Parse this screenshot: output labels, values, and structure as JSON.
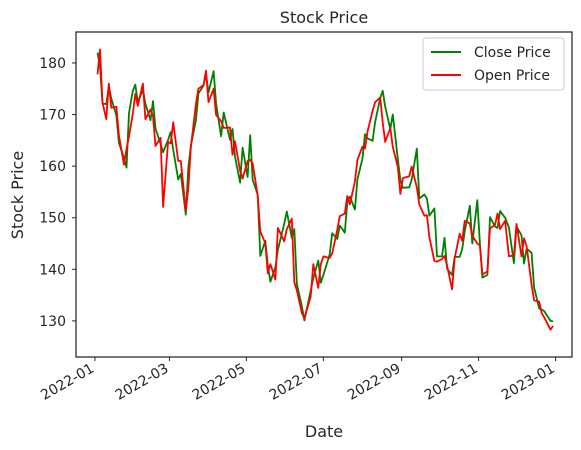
{
  "chart_data": {
    "type": "line",
    "title": "Stock Price",
    "xlabel": "Date",
    "ylabel": "Stock Price",
    "xlim": [
      "2021-12-17",
      "2023-01-14"
    ],
    "ylim": [
      123,
      186
    ],
    "x_ticks": [
      "2022-01",
      "2022-03",
      "2022-05",
      "2022-07",
      "2022-09",
      "2022-11",
      "2023-01"
    ],
    "y_ticks": [
      130,
      140,
      150,
      160,
      170,
      180
    ],
    "grid": false,
    "legend_position": "upper right",
    "x": [
      "2022-01-03",
      "2022-01-05",
      "2022-01-07",
      "2022-01-10",
      "2022-01-12",
      "2022-01-14",
      "2022-01-18",
      "2022-01-20",
      "2022-01-24",
      "2022-01-26",
      "2022-01-28",
      "2022-01-31",
      "2022-02-02",
      "2022-02-04",
      "2022-02-08",
      "2022-02-10",
      "2022-02-14",
      "2022-02-16",
      "2022-02-18",
      "2022-02-22",
      "2022-02-24",
      "2022-02-28",
      "2022-03-02",
      "2022-03-04",
      "2022-03-08",
      "2022-03-10",
      "2022-03-14",
      "2022-03-16",
      "2022-03-18",
      "2022-03-22",
      "2022-03-24",
      "2022-03-28",
      "2022-03-30",
      "2022-04-01",
      "2022-04-05",
      "2022-04-07",
      "2022-04-11",
      "2022-04-13",
      "2022-04-18",
      "2022-04-20",
      "2022-04-22",
      "2022-04-26",
      "2022-04-28",
      "2022-05-02",
      "2022-05-04",
      "2022-05-06",
      "2022-05-10",
      "2022-05-12",
      "2022-05-16",
      "2022-05-18",
      "2022-05-20",
      "2022-05-24",
      "2022-05-26",
      "2022-05-31",
      "2022-06-02",
      "2022-06-06",
      "2022-06-08",
      "2022-06-10",
      "2022-06-14",
      "2022-06-16",
      "2022-06-21",
      "2022-06-23",
      "2022-06-27",
      "2022-06-29",
      "2022-07-01",
      "2022-07-06",
      "2022-07-08",
      "2022-07-12",
      "2022-07-14",
      "2022-07-18",
      "2022-07-20",
      "2022-07-22",
      "2022-07-26",
      "2022-07-28",
      "2022-08-01",
      "2022-08-03",
      "2022-08-05",
      "2022-08-09",
      "2022-08-11",
      "2022-08-15",
      "2022-08-17",
      "2022-08-19",
      "2022-08-23",
      "2022-08-25",
      "2022-08-29",
      "2022-08-31",
      "2022-09-02",
      "2022-09-07",
      "2022-09-09",
      "2022-09-13",
      "2022-09-15",
      "2022-09-19",
      "2022-09-21",
      "2022-09-23",
      "2022-09-27",
      "2022-09-29",
      "2022-10-03",
      "2022-10-05",
      "2022-10-07",
      "2022-10-11",
      "2022-10-13",
      "2022-10-17",
      "2022-10-19",
      "2022-10-21",
      "2022-10-25",
      "2022-10-27",
      "2022-10-31",
      "2022-11-02",
      "2022-11-04",
      "2022-11-08",
      "2022-11-10",
      "2022-11-14",
      "2022-11-16",
      "2022-11-18",
      "2022-11-22",
      "2022-11-25",
      "2022-11-29",
      "2022-12-01",
      "2022-12-05",
      "2022-12-07",
      "2022-12-09",
      "2022-12-13",
      "2022-12-15",
      "2022-12-19",
      "2022-12-21",
      "2022-12-23",
      "2022-12-28",
      "2022-12-30"
    ],
    "series": [
      {
        "name": "Close Price",
        "color": "#008000",
        "values": [
          182.0,
          179.3,
          172.2,
          172.0,
          175.5,
          173.1,
          169.8,
          164.5,
          161.6,
          159.7,
          170.3,
          174.6,
          175.8,
          172.4,
          174.8,
          172.1,
          168.9,
          172.6,
          167.3,
          164.3,
          162.7,
          165.1,
          166.6,
          163.2,
          157.4,
          158.5,
          150.6,
          159.6,
          163.9,
          168.8,
          174.1,
          175.6,
          177.8,
          174.3,
          178.4,
          172.1,
          165.8,
          170.4,
          165.1,
          167.2,
          161.8,
          156.8,
          163.6,
          157.9,
          166.0,
          157.3,
          154.5,
          142.6,
          145.5,
          140.8,
          137.6,
          140.4,
          143.8,
          148.8,
          151.2,
          146.1,
          147.8,
          137.1,
          132.8,
          130.1,
          135.9,
          138.3,
          141.7,
          137.4,
          138.9,
          142.9,
          147.0,
          145.9,
          148.5,
          147.1,
          153.0,
          154.1,
          151.6,
          157.4,
          161.5,
          166.2,
          165.4,
          164.9,
          168.5,
          173.2,
          174.6,
          171.5,
          167.2,
          170.0,
          161.4,
          157.2,
          155.8,
          155.9,
          157.4,
          163.4,
          153.7,
          154.5,
          153.7,
          150.4,
          151.8,
          142.5,
          142.5,
          146.1,
          140.1,
          138.9,
          142.4,
          142.4,
          143.9,
          147.3,
          152.3,
          145.0,
          153.4,
          145.0,
          138.4,
          138.9,
          150.1,
          148.3,
          148.0,
          151.3,
          150.0,
          148.1,
          141.2,
          148.3,
          146.6,
          141.1,
          144.0,
          143.2,
          136.5,
          132.4,
          132.2,
          131.9,
          130.0,
          129.9
        ]
      },
      {
        "name": "Open Price",
        "color": "#ff0000",
        "values": [
          177.8,
          182.6,
          172.3,
          169.1,
          176.0,
          171.3,
          171.5,
          166.0,
          160.3,
          163.3,
          165.7,
          170.2,
          174.0,
          171.7,
          176.0,
          169.1,
          171.0,
          169.8,
          163.9,
          165.5,
          152.1,
          164.7,
          164.4,
          168.5,
          161.0,
          161.0,
          151.4,
          155.7,
          163.5,
          172.0,
          175.0,
          175.7,
          178.5,
          172.4,
          175.0,
          169.9,
          168.7,
          167.4,
          167.5,
          162.2,
          164.8,
          159.1,
          157.6,
          161.0,
          161.2,
          160.5,
          154.3,
          147.3,
          145.1,
          139.2,
          141.0,
          138.0,
          148.0,
          145.4,
          147.8,
          149.8,
          137.5,
          135.9,
          131.5,
          130.5,
          134.7,
          141.0,
          136.4,
          141.0,
          142.5,
          142.2,
          143.1,
          147.7,
          150.3,
          150.8,
          154.2,
          152.6,
          157.0,
          161.2,
          163.8,
          163.4,
          166.7,
          170.7,
          172.4,
          173.3,
          168.5,
          164.7,
          167.4,
          163.7,
          159.9,
          154.6,
          157.7,
          158.0,
          159.9,
          155.9,
          152.6,
          150.4,
          150.5,
          146.2,
          141.6,
          141.5,
          142.0,
          142.6,
          140.7,
          136.1,
          142.1,
          146.9,
          145.5,
          149.4,
          148.9,
          146.5,
          145.0,
          144.6,
          139.0,
          139.6,
          147.9,
          148.6,
          150.8,
          147.8,
          149.4,
          142.5,
          142.7,
          148.8,
          142.5,
          146.0,
          144.5,
          137.0,
          134.0,
          133.7,
          131.5,
          130.7,
          128.3,
          129.0
        ]
      }
    ]
  }
}
